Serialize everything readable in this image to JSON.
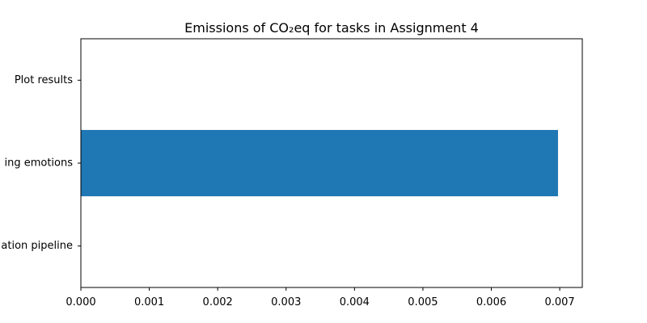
{
  "chart_data": {
    "type": "bar",
    "orientation": "horizontal",
    "title": "Emissions of CO₂eq for tasks in Assignment 4",
    "xlabel": "",
    "ylabel": "",
    "categories": [
      "ation pipeline",
      "ing emotions",
      "Plot results"
    ],
    "values": [
      0,
      0.006975,
      0
    ],
    "xlim": [
      0,
      0.00733
    ],
    "xticks": [
      0,
      0.001,
      0.002,
      0.003,
      0.004,
      0.005,
      0.006,
      0.007
    ],
    "xtick_labels": [
      "0.000",
      "0.001",
      "0.002",
      "0.003",
      "0.004",
      "0.005",
      "0.006",
      "0.007"
    ],
    "grid": false,
    "legend": "none",
    "bar_color": "#1f77b4"
  }
}
